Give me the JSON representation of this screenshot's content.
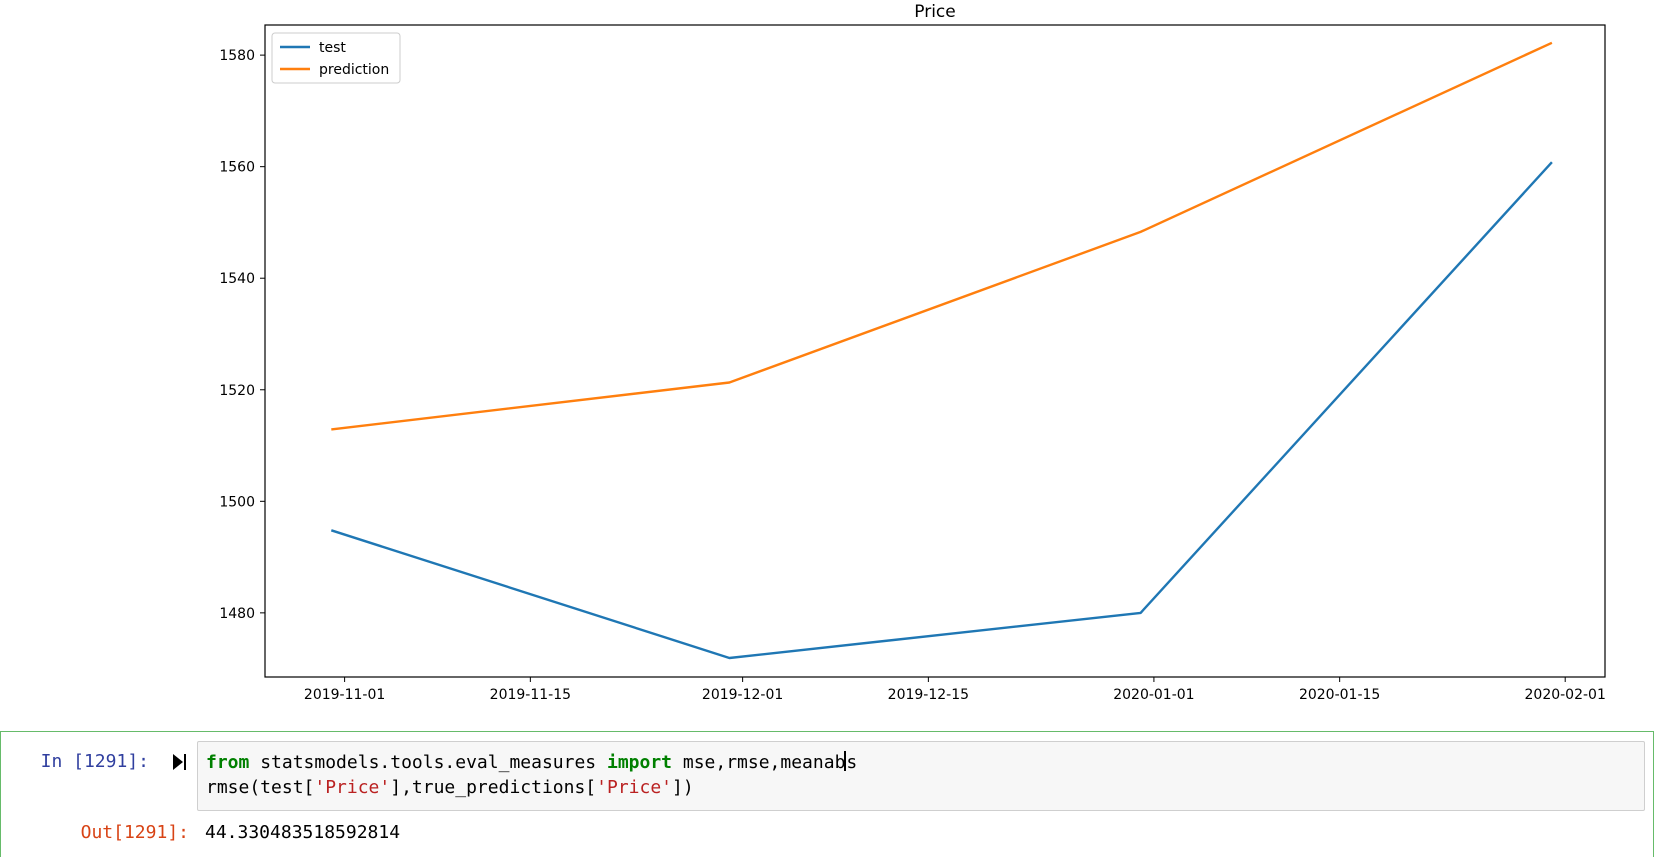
{
  "chart_data": {
    "type": "line",
    "title": "Price",
    "xlabel": "",
    "ylabel": "",
    "x": [
      "2019-10-31",
      "2019-11-30",
      "2019-12-31",
      "2020-01-31"
    ],
    "series": [
      {
        "name": "test",
        "values": [
          1494.8,
          1471.9,
          1480.0,
          1560.8
        ],
        "color": "#1f77b4"
      },
      {
        "name": "prediction",
        "values": [
          1512.9,
          1521.3,
          1548.3,
          1582.2
        ],
        "color": "#ff7f0e"
      }
    ],
    "xticks": [
      "2019-11-01",
      "2019-11-15",
      "2019-12-01",
      "2019-12-15",
      "2020-01-01",
      "2020-01-15",
      "2020-02-01"
    ],
    "yticks": [
      1480,
      1500,
      1520,
      1540,
      1560,
      1580
    ],
    "xlim": [
      "2019-10-26",
      "2020-02-04"
    ],
    "ylim": [
      1468.5,
      1585.4
    ],
    "grid": false,
    "legend": "upper left"
  },
  "cell": {
    "in_prompt": "In [1291]:",
    "out_prompt": "Out[1291]:",
    "code_line1": {
      "kw1": "from",
      "mod": " statsmodels.tools.eval_measures ",
      "kw2": "import",
      "names": " mse,rmse,meanab",
      "after_cursor": "s"
    },
    "code_line2": {
      "p1": "rmse(test[",
      "s1": "'Price'",
      "p2": "],true_predictions[",
      "s2": "'Price'",
      "p3": "])"
    },
    "output": "44.330483518592814"
  }
}
